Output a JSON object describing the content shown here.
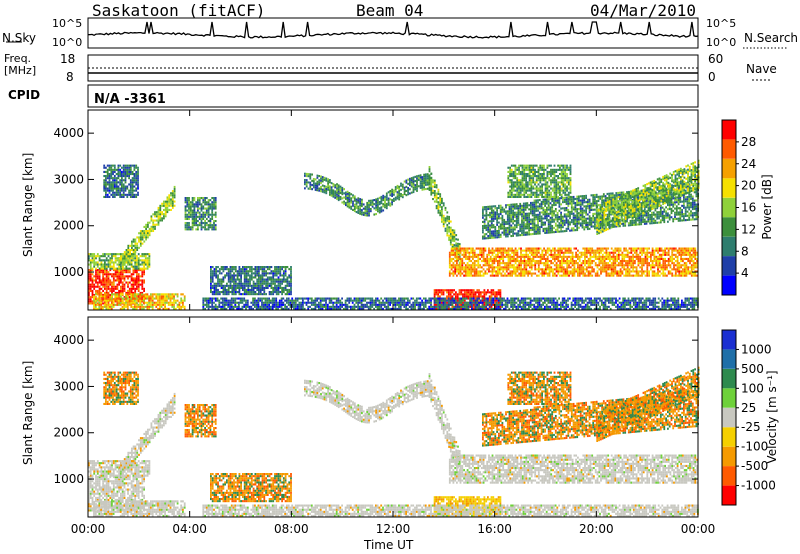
{
  "header": {
    "station": "Saskatoon (fitACF)",
    "beam": "Beam 04",
    "date": "04/Mar/2010"
  },
  "noise_panel": {
    "left_label": "N.Sky",
    "right_label": "N.Search",
    "ticks_left": [
      "10^5",
      "10^0"
    ],
    "ticks_right": [
      "10^5",
      "10^0"
    ]
  },
  "freq_panel": {
    "left_label_1": "Freq.",
    "left_label_2": "[MHz]",
    "right_label": "Nave",
    "ticks_left": [
      "18",
      "8"
    ],
    "ticks_right": [
      "60",
      "0"
    ]
  },
  "cpid": {
    "label": "CPID",
    "value": "N/A -3361"
  },
  "colors": {
    "power_scale": [
      "#0000ff",
      "#1f3fa8",
      "#2e7d6e",
      "#3c8f3c",
      "#8fd13a",
      "#f5e000",
      "#f5a000",
      "#ff5a00",
      "#ff0000"
    ],
    "velocity_scale": [
      "#1a2fd1",
      "#1f6fa8",
      "#2e8a4e",
      "#6ed13a",
      "#c8c8c0",
      "#f5d000",
      "#f59a00",
      "#ff5a00",
      "#ff0000"
    ],
    "ground_scatter": "#c8c8c0"
  },
  "chart_data": [
    {
      "type": "heatmap",
      "title": "",
      "xlabel": "Time UT",
      "ylabel": "Slant Range [km]",
      "x_ticks": [
        "00:00",
        "04:00",
        "08:00",
        "12:00",
        "16:00",
        "20:00",
        "00:00"
      ],
      "y_ticks": [
        "1000",
        "2000",
        "3000",
        "4000"
      ],
      "xlim": [
        0,
        24
      ],
      "ylim": [
        180,
        4500
      ],
      "colorbar": {
        "label": "Power [dB]",
        "ticks": [
          "4",
          "8",
          "12",
          "16",
          "20",
          "24",
          "28"
        ],
        "range": [
          0,
          30
        ]
      }
    },
    {
      "type": "heatmap",
      "title": "",
      "xlabel": "Time UT",
      "ylabel": "Slant Range [km]",
      "x_ticks": [
        "00:00",
        "04:00",
        "08:00",
        "12:00",
        "16:00",
        "20:00",
        "00:00"
      ],
      "y_ticks": [
        "1000",
        "2000",
        "3000",
        "4000"
      ],
      "xlim": [
        0,
        24
      ],
      "ylim": [
        180,
        4500
      ],
      "colorbar": {
        "label": "Velocity [m s⁻¹]",
        "ticks": [
          "1000",
          "500",
          "100",
          "25",
          "-25",
          "-100",
          "-500",
          "-1000"
        ]
      }
    }
  ],
  "axis": {
    "xlabel": "Time UT"
  }
}
